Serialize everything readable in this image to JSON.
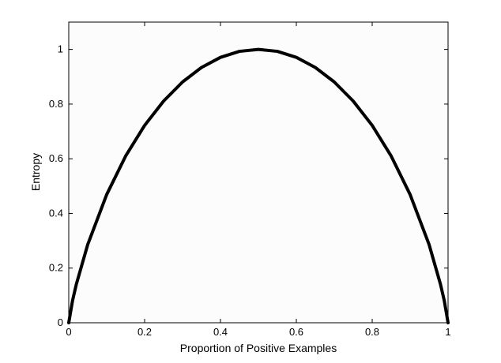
{
  "chart_data": {
    "type": "line",
    "title": "",
    "xlabel": "Proportion of Positive Examples",
    "ylabel": "Entropy",
    "xlim": [
      0,
      1
    ],
    "ylim": [
      0,
      1.1
    ],
    "x_ticks": [
      "0",
      "0.2",
      "0.4",
      "0.6",
      "0.8",
      "1"
    ],
    "y_ticks": [
      "0",
      "0.2",
      "0.4",
      "0.6",
      "0.8",
      "1"
    ],
    "grid": false,
    "legend": "none",
    "line_color": "#000000",
    "series": [
      {
        "x": [
          0,
          0.01,
          0.02,
          0.05,
          0.1,
          0.15,
          0.2,
          0.25,
          0.3,
          0.35,
          0.4,
          0.45,
          0.5,
          0.55,
          0.6,
          0.65,
          0.7,
          0.75,
          0.8,
          0.85,
          0.9,
          0.95,
          0.98,
          0.99,
          1
        ],
        "y": [
          0,
          0.081,
          0.141,
          0.286,
          0.469,
          0.61,
          0.722,
          0.811,
          0.881,
          0.934,
          0.971,
          0.993,
          1,
          0.993,
          0.971,
          0.934,
          0.881,
          0.811,
          0.722,
          0.61,
          0.469,
          0.286,
          0.141,
          0.081,
          0
        ]
      }
    ]
  }
}
